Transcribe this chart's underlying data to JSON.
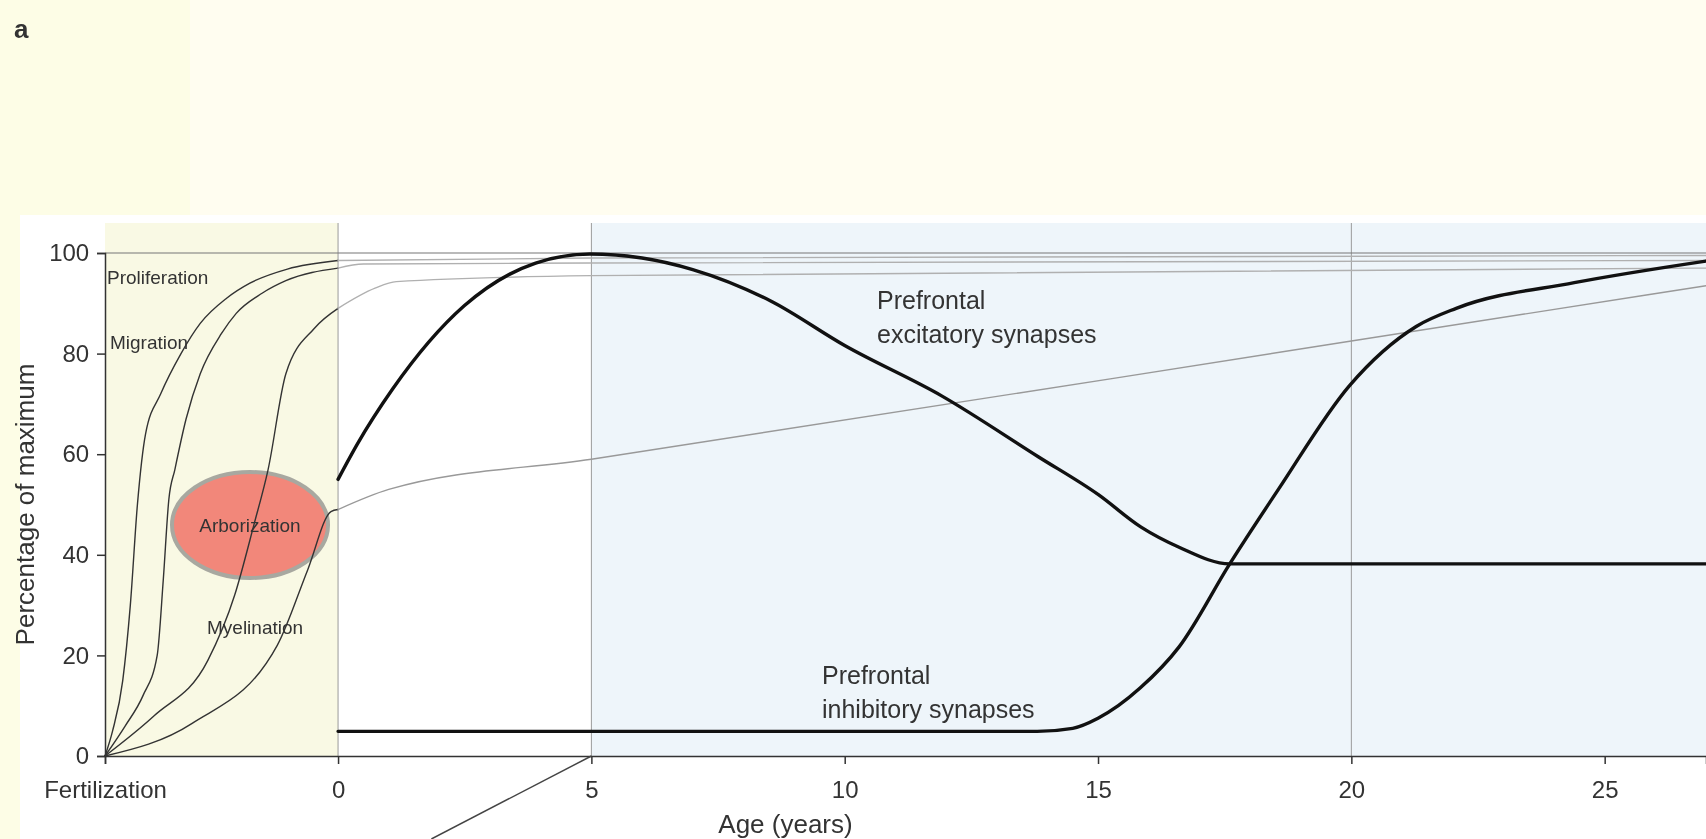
{
  "chart_data": {
    "type": "line",
    "xlabel": "Age (years)",
    "ylabel": "Percentage of maximum",
    "xlim": [
      -4.6,
      27
    ],
    "ylim": [
      0,
      100
    ],
    "xticks": [
      {
        "value": -4.6,
        "label": "Fertilization"
      },
      0,
      5,
      10,
      15,
      20,
      25
    ],
    "yticks": [
      0,
      20,
      40,
      60,
      80,
      100
    ],
    "grid": false,
    "marker": "none",
    "line_style": "solid",
    "bands": [
      {
        "axis": "x",
        "from": -4.6,
        "to": 0,
        "label": null,
        "color": "#f9f9e4"
      },
      {
        "axis": "x",
        "from": 5,
        "to": 27,
        "label": null,
        "color": "#eef5fa"
      }
    ],
    "ref_lines": [
      {
        "axis": "x",
        "value": 0,
        "label": null,
        "color": "#9a9a9a"
      },
      {
        "axis": "x",
        "value": 5,
        "label": null,
        "color": "#9a9a9a"
      },
      {
        "axis": "x",
        "value": 20,
        "label": null,
        "color": "#9a9a9a"
      },
      {
        "axis": "y",
        "value": 100,
        "label": null,
        "color": "#777777"
      }
    ],
    "series": [
      {
        "color": "#333333",
        "x": [
          -4.6,
          -4.45,
          -4.25,
          -4.1,
          -3.96,
          -3.8,
          -3.5,
          -3.1,
          -2.72,
          -2.2,
          -1.74,
          -1,
          0
        ],
        "values": [
          0,
          5,
          15,
          30,
          50,
          64,
          72,
          80,
          86,
          91,
          94,
          96.8,
          98.5
        ]
      },
      {
        "color": "#333333",
        "x": [
          -4.6,
          -4.2,
          -3.85,
          -3.57,
          -3.45,
          -3.34,
          -3.22,
          -3.0,
          -2.72,
          -2.3,
          -2.01,
          -1.5,
          -1.03,
          0
        ],
        "values": [
          0,
          6,
          12,
          20,
          35,
          51,
          57,
          67,
          76,
          84,
          88,
          92,
          94.5,
          97
        ]
      },
      {
        "color": "#333333",
        "x": [
          -4.6,
          -3.63,
          -2.57,
          -2.04,
          -1.66,
          -1.38,
          -1.03,
          -0.47,
          0
        ],
        "values": [
          0,
          8,
          19,
          32,
          46,
          57,
          76,
          85,
          89
        ]
      },
      {
        "color": "#333333",
        "x": [
          -4.6,
          -2.88,
          -1.2,
          -0.6,
          -0.14,
          0
        ],
        "values": [
          0,
          6.5,
          22,
          37,
          48.6,
          49
        ]
      },
      {
        "color": "#b0b0b0",
        "x": [
          0,
          5,
          27
        ],
        "values": [
          98.5,
          99,
          99.5
        ]
      },
      {
        "color": "#b0b0b0",
        "x": [
          0,
          0.5,
          5,
          27
        ],
        "values": [
          97,
          97.8,
          98,
          98.5
        ]
      },
      {
        "color": "#b0b0b0",
        "x": [
          0,
          0.73,
          1.15,
          5,
          27
        ],
        "values": [
          89,
          93,
          94.3,
          95.5,
          97
        ]
      },
      {
        "color": "#999999",
        "x": [
          0,
          1,
          5,
          20,
          27
        ],
        "values": [
          49,
          53,
          59,
          82.5,
          93.5
        ]
      },
      {
        "color": "#111111",
        "x": [
          0,
          0.38,
          1.08,
          2.49,
          3.9,
          4.97,
          6,
          7,
          8.53,
          10,
          11.93,
          13.82,
          15,
          15.85,
          16.6,
          17.6,
          27
        ],
        "values": [
          55,
          62,
          73,
          89.5,
          98,
          99.8,
          99,
          96.7,
          90.5,
          81.6,
          71.5,
          59.5,
          52,
          45.5,
          41.5,
          38.2,
          38.2
        ]
      },
      {
        "color": "#111111",
        "x": [
          0,
          13.8,
          14.5,
          15.0,
          15.4,
          15.83,
          16.6,
          17.6,
          18.56,
          19.96,
          21.28,
          22.07,
          24.4,
          27
        ],
        "values": [
          4.9,
          4.9,
          5.5,
          7.5,
          10,
          13.5,
          21.7,
          38.2,
          53,
          73.6,
          85.4,
          89,
          94.1,
          98.4
        ]
      }
    ],
    "annotations": [
      "a",
      "Proliferation",
      "Migration",
      "Arborization",
      "Myelination",
      "Prefrontal\nexcitatory synapses",
      "Prefrontal\ninhibitory synapses"
    ]
  }
}
